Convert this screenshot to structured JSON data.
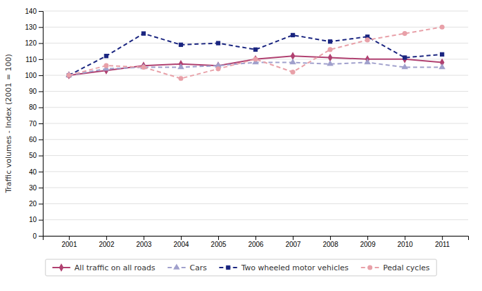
{
  "chart_data": {
    "type": "line",
    "y_label": "Traffic volumes - Index (2001 = 100)",
    "x": [
      2001,
      2002,
      2003,
      2004,
      2005,
      2006,
      2007,
      2008,
      2009,
      2010,
      2011
    ],
    "xlim": [
      2000.3,
      2011.7
    ],
    "xticks": [
      2001,
      2002,
      2003,
      2004,
      2005,
      2006,
      2007,
      2008,
      2009,
      2010,
      2011
    ],
    "ylim": [
      0,
      140
    ],
    "yticks": [
      0,
      10,
      20,
      30,
      40,
      50,
      60,
      70,
      80,
      90,
      100,
      110,
      120,
      130,
      140
    ],
    "grid": true,
    "legend": "bottom",
    "series": [
      {
        "name": "All traffic on all roads",
        "color": "#b04070",
        "marker": "diamond",
        "line_style": "solid",
        "values": [
          100,
          103,
          106,
          107,
          106,
          110,
          112,
          111,
          110,
          110,
          108
        ]
      },
      {
        "name": "Cars",
        "color": "#a0a0cc",
        "marker": "triangle",
        "line_style": "dashed",
        "values": [
          100,
          104,
          105,
          105,
          106,
          108,
          108,
          107,
          108,
          105,
          105
        ]
      },
      {
        "name": "Two wheeled motor vehicles",
        "color": "#1a2580",
        "marker": "square",
        "line_style": "dashed",
        "values": [
          100,
          112,
          126,
          119,
          120,
          116,
          125,
          121,
          124,
          111,
          113
        ]
      },
      {
        "name": "Pedal cycles",
        "color": "#e8a0a8",
        "marker": "circle",
        "line_style": "dashed",
        "values": [
          100,
          106,
          105,
          98,
          104,
          110,
          102,
          116,
          122,
          126,
          130
        ]
      }
    ]
  }
}
